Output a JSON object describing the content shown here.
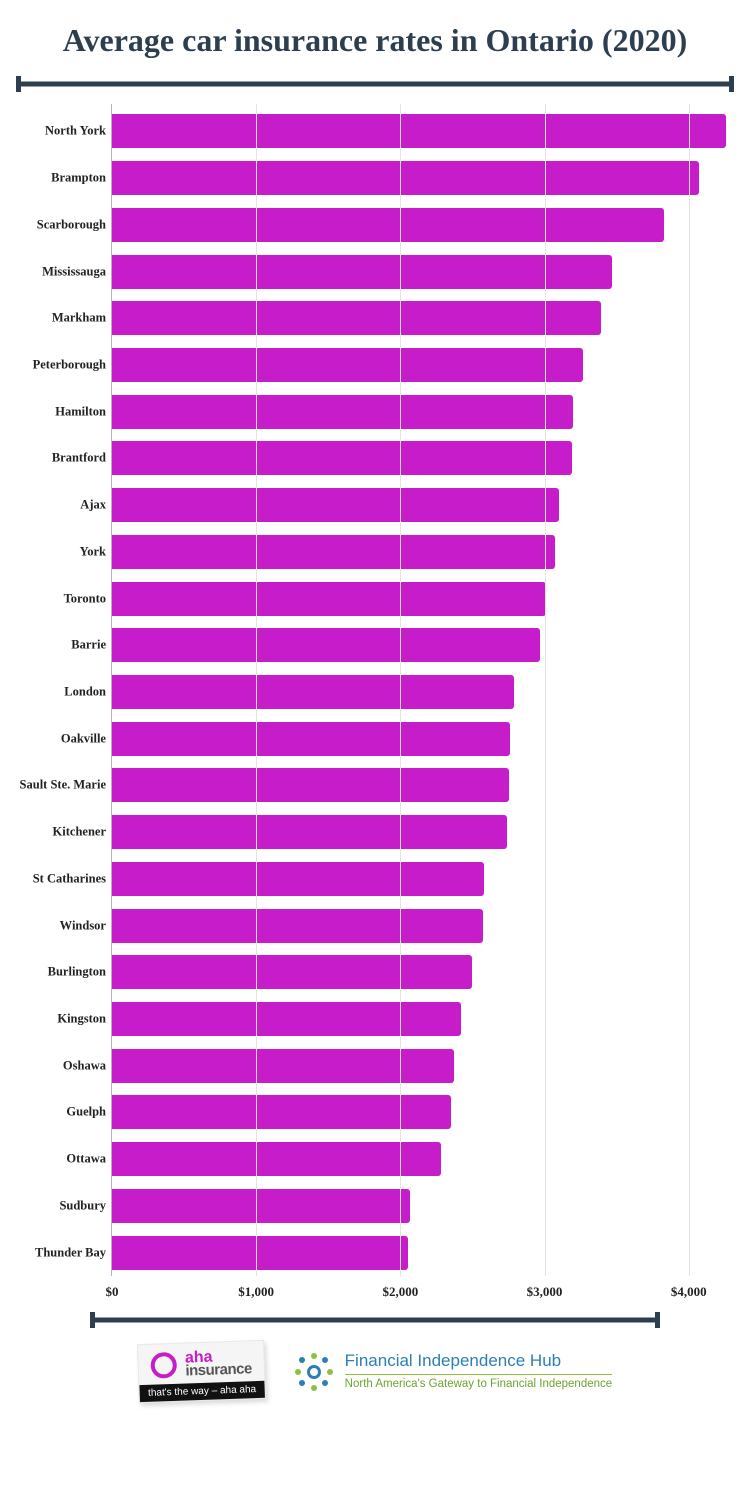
{
  "title": "Average car insurance rates in Ontario (2020)",
  "title_fontsize": 32,
  "title_color": "#2c3e50",
  "chart": {
    "type": "bar-horizontal",
    "bar_color": "#c71cc9",
    "background_color": "#ffffff",
    "grid_color": "#e6e2df",
    "axis_color": "#b9b4b0",
    "xmin": 0,
    "xmax": 4300,
    "xtick_step": 1000,
    "xtick_prefix": "$",
    "xtick_format_thousands": true,
    "label_fontsize": 12.5,
    "tick_fontsize": 13,
    "categories": [
      "North York",
      "Brampton",
      "Scarborough",
      "Mississauga",
      "Markham",
      "Peterborough",
      "Hamilton",
      "Brantford",
      "Ajax",
      "York",
      "Toronto",
      "Barrie",
      "London",
      "Oakville",
      "Sault Ste. Marie",
      "Kitchener",
      "St Catharines",
      "Windsor",
      "Burlington",
      "Kingston",
      "Oshawa",
      "Guelph",
      "Ottawa",
      "Sudbury",
      "Thunder Bay"
    ],
    "values": [
      4260,
      4070,
      3830,
      3470,
      3390,
      3270,
      3200,
      3190,
      3100,
      3070,
      3010,
      2970,
      2790,
      2760,
      2750,
      2740,
      2580,
      2570,
      2500,
      2420,
      2370,
      2350,
      2280,
      2070,
      2050
    ]
  },
  "logos": {
    "aha": {
      "line1": "aha",
      "line2": "insurance",
      "tag": "that's the way – aha aha",
      "ring_color": "#c71cc9"
    },
    "fih": {
      "title": "Financial Independence Hub",
      "subtitle": "North America's Gateway to Financial Independence",
      "title_color": "#2d7fb3",
      "subtitle_color": "#6aa52b"
    }
  }
}
